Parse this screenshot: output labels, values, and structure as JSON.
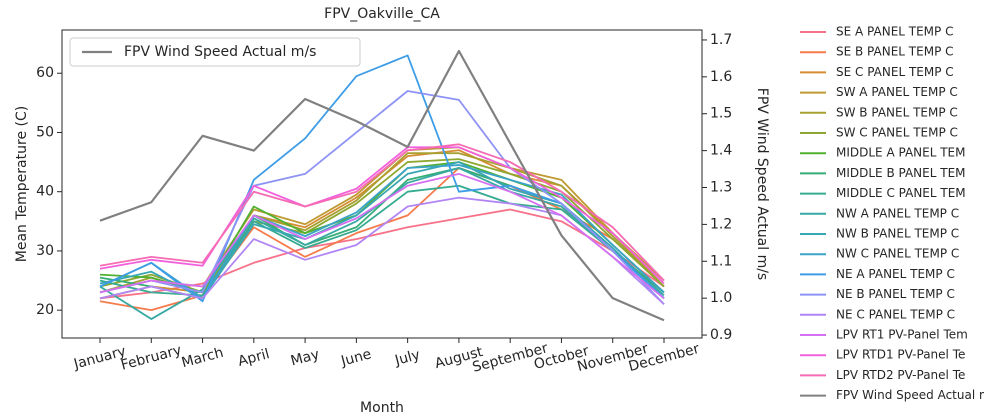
{
  "chart_data": {
    "type": "line",
    "title": "FPV_Oakville_CA",
    "xlabel": "Month",
    "ylabel": "Mean Temperature (C)",
    "y2label": "FPV Wind Speed Actual m/s",
    "categories": [
      "January",
      "February",
      "March",
      "April",
      "May",
      "June",
      "July",
      "August",
      "September",
      "October",
      "November",
      "December"
    ],
    "ylim": [
      15.3,
      67.3
    ],
    "yticks": [
      20,
      30,
      40,
      50,
      60
    ],
    "y2lim": [
      0.892,
      1.727
    ],
    "y2ticks": [
      0.9,
      {
        "value": 1.0,
        "label": "1.0"
      },
      1.1,
      1.2,
      1.3,
      1.4,
      1.5,
      1.6,
      1.7
    ],
    "series": [
      {
        "name": "SE A PANEL TEMP C",
        "color": "#f77189",
        "values": [
          22,
          23,
          24.5,
          28,
          30.5,
          32,
          34,
          35.5,
          37,
          35,
          30,
          24
        ]
      },
      {
        "name": "SE B PANEL TEMP C",
        "color": "#f57b4b",
        "values": [
          21.5,
          20,
          22.5,
          34,
          29,
          33,
          36,
          44,
          41,
          37,
          32,
          24
        ]
      },
      {
        "name": "SE C PANEL TEMP C",
        "color": "#d58c32",
        "values": [
          22,
          24,
          23,
          36,
          34,
          39,
          46,
          47,
          43,
          41,
          33,
          24
        ]
      },
      {
        "name": "SW A PANEL TEMP C",
        "color": "#bf9a32",
        "values": [
          23,
          25,
          24,
          37,
          34.5,
          39.5,
          47,
          47.5,
          44,
          42,
          33,
          25
        ]
      },
      {
        "name": "SW B PANEL TEMP C",
        "color": "#a8a031",
        "values": [
          23,
          25.5,
          23,
          36,
          33.5,
          38.5,
          46.5,
          46.5,
          44,
          41,
          32.5,
          24
        ]
      },
      {
        "name": "SW C PANEL TEMP C",
        "color": "#8ea731",
        "values": [
          24,
          26,
          23,
          35,
          33,
          38,
          45,
          45.5,
          43,
          40,
          32,
          24
        ]
      },
      {
        "name": "MIDDLE A PANEL TEM",
        "color": "#50b131",
        "values": [
          26,
          25.5,
          23,
          37.5,
          33,
          36,
          44,
          45,
          42,
          39,
          31,
          23
        ]
      },
      {
        "name": "MIDDLE B PANEL TEM",
        "color": "#34ae76",
        "values": [
          25.5,
          24,
          22,
          36,
          31,
          34,
          42,
          44,
          41,
          38,
          30,
          23
        ]
      },
      {
        "name": "MIDDLE C PANEL TEM",
        "color": "#36ab90",
        "values": [
          25,
          23,
          22.5,
          35,
          30.5,
          33.5,
          40,
          41,
          38,
          37,
          30,
          22
        ]
      },
      {
        "name": "NW A PANEL TEMP C",
        "color": "#37a9a2",
        "values": [
          24,
          18.5,
          23.5,
          35.5,
          31,
          35,
          41.5,
          44,
          40,
          37.5,
          30,
          22.5
        ]
      },
      {
        "name": "NW B PANEL TEMP C",
        "color": "#38a7b3",
        "values": [
          24.5,
          26.5,
          22,
          34.5,
          32,
          36,
          43,
          45,
          40.5,
          38,
          30.5,
          22
        ]
      },
      {
        "name": "NW C PANEL TEMP C",
        "color": "#3ba3c8",
        "values": [
          24,
          28,
          22,
          36,
          32.5,
          36.5,
          44,
          44.5,
          42,
          39.5,
          31,
          23
        ]
      },
      {
        "name": "NE A PANEL TEMP C",
        "color": "#3e9de6",
        "values": [
          24,
          28,
          21.5,
          42,
          49,
          59.5,
          63,
          40,
          41,
          38,
          30,
          22
        ]
      },
      {
        "name": "NE B PANEL TEMP C",
        "color": "#8d93f4",
        "values": [
          23,
          25,
          23,
          41,
          43,
          50,
          57,
          55.5,
          44,
          38,
          30,
          21
        ]
      },
      {
        "name": "NE C PANEL TEMP C",
        "color": "#b186f4",
        "values": [
          22,
          24,
          22,
          32,
          28.5,
          31,
          37.5,
          39,
          38,
          36,
          29,
          21
        ]
      },
      {
        "name": "LPV RT1 PV-Panel Tem",
        "color": "#d670f2",
        "values": [
          23,
          25,
          24,
          36,
          32,
          35.5,
          41,
          43,
          40,
          36,
          29,
          22
        ]
      },
      {
        "name": "LPV RTD1 PV-Panel Te",
        "color": "#f261dd",
        "values": [
          27,
          28.5,
          27.5,
          41,
          37.5,
          40.5,
          47.5,
          47.5,
          44,
          39,
          33,
          24.5
        ]
      },
      {
        "name": "LPV RTD2 PV-Panel Te",
        "color": "#f66bb4",
        "values": [
          27.5,
          29,
          28,
          40,
          37.5,
          40,
          47,
          48,
          45,
          40,
          34,
          25
        ]
      },
      {
        "name": "FPV Wind Speed Actual m/s",
        "color": "#808080",
        "axis": "y2",
        "values": [
          1.21,
          1.26,
          1.44,
          1.4,
          1.54,
          1.48,
          1.41,
          1.67,
          1.42,
          1.17,
          1.0,
          0.94
        ]
      }
    ]
  }
}
